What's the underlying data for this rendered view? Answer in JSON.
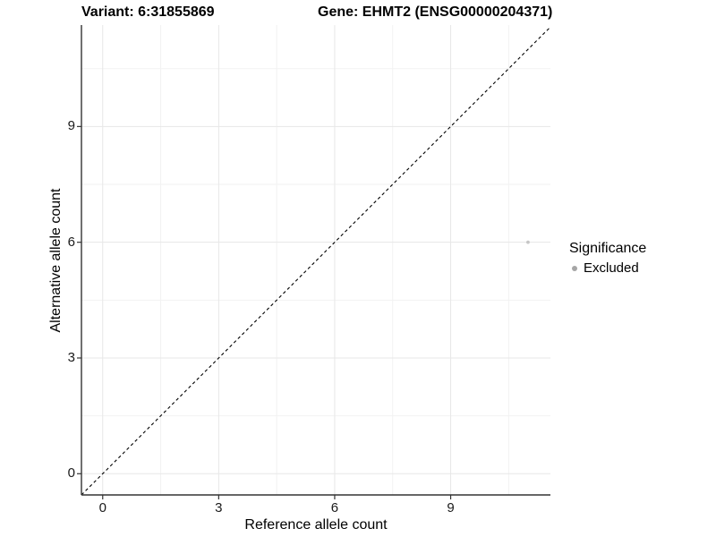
{
  "chart_data": {
    "type": "scatter",
    "titles": [
      {
        "text": "Variant: 6:31855869"
      },
      {
        "text": "Gene: EHMT2 (ENSG00000204371)"
      }
    ],
    "xlabel": "Reference allele count",
    "ylabel": "Alternative allele count",
    "xlim": [
      -0.55,
      11.58
    ],
    "ylim": [
      -0.55,
      11.63
    ],
    "x_major_ticks": [
      0,
      3,
      6,
      9
    ],
    "y_major_ticks": [
      0,
      3,
      6,
      9
    ],
    "x_minor_ticks": [
      1.5,
      4.5,
      7.5,
      10.5
    ],
    "y_minor_ticks": [
      1.5,
      4.5,
      7.5,
      10.5
    ],
    "grid": "major+minor",
    "reference_line": {
      "kind": "identity y=x",
      "style": "dashed",
      "color": "#000000"
    },
    "series": [
      {
        "name": "Excluded",
        "color": "#c6c6c6",
        "points": [
          {
            "x": 11,
            "y": 6
          }
        ],
        "point_radius": 1.9
      }
    ],
    "legend": {
      "position": "right",
      "title": "Significance",
      "items": [
        {
          "label": "Excluded",
          "marker": "dot",
          "color": "#a6a6a6"
        }
      ]
    }
  },
  "colors": {
    "axis_line": "#333333",
    "tick_mark": "#333333",
    "grid_major": "#e7e7e7",
    "grid_minor": "#f2f2f2"
  }
}
